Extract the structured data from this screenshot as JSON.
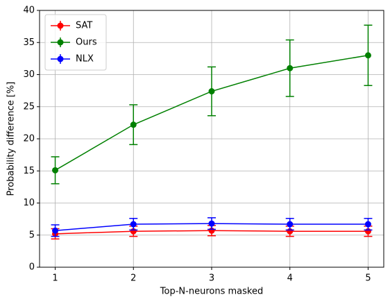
{
  "chart_data": {
    "type": "line",
    "xlabel": "Top-N-neurons masked",
    "ylabel": "Probability difference [%]",
    "x": [
      1,
      2,
      3,
      4,
      5
    ],
    "series": [
      {
        "name": "SAT",
        "color": "#ff0000",
        "values": [
          5.2,
          5.6,
          5.7,
          5.6,
          5.6
        ],
        "errors": [
          0.8,
          0.8,
          0.8,
          0.8,
          0.8
        ]
      },
      {
        "name": "Ours",
        "color": "#008000",
        "values": [
          15.1,
          22.2,
          27.4,
          31.0,
          33.0
        ],
        "errors": [
          2.1,
          3.1,
          3.8,
          4.4,
          4.7
        ]
      },
      {
        "name": "NLX",
        "color": "#0000ff",
        "values": [
          5.7,
          6.7,
          6.8,
          6.7,
          6.7
        ],
        "errors": [
          0.9,
          0.9,
          0.9,
          0.9,
          0.9
        ]
      }
    ],
    "xlim": [
      0.8,
      5.2
    ],
    "xticks": [
      1,
      2,
      3,
      4,
      5
    ],
    "ylim": [
      0,
      40
    ],
    "yticks": [
      0,
      5,
      10,
      15,
      20,
      25,
      30,
      35,
      40
    ],
    "grid": true,
    "legend": "upper left"
  }
}
